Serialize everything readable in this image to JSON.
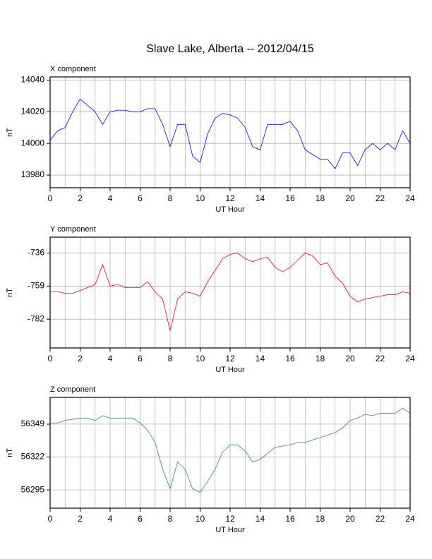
{
  "title": "Slave Lake, Alberta -- 2012/04/15",
  "chart_data": [
    {
      "type": "line",
      "title": "X component",
      "xlabel": "UT Hour",
      "ylabel": "nT",
      "color": "#0000ff",
      "grid": true,
      "xlim": [
        0,
        24
      ],
      "xticks": [
        0,
        2,
        4,
        6,
        8,
        10,
        12,
        14,
        16,
        18,
        20,
        22,
        24
      ],
      "xminorticks": [
        1,
        3,
        5,
        7,
        9,
        11,
        13,
        15,
        17,
        19,
        21,
        23
      ],
      "ylim": [
        13972,
        14042
      ],
      "yticks": [
        13980,
        14000,
        14020,
        14040
      ],
      "x": [
        0,
        0.5,
        1,
        1.5,
        2,
        2.5,
        3,
        3.5,
        4,
        4.5,
        5,
        5.5,
        6,
        6.5,
        7,
        7.5,
        8,
        8.5,
        9,
        9.5,
        10,
        10.5,
        11,
        11.5,
        12,
        12.5,
        13,
        13.5,
        14,
        14.5,
        15,
        15.5,
        16,
        16.5,
        17,
        17.5,
        18,
        18.5,
        19,
        19.5,
        20,
        20.5,
        21,
        21.5,
        22,
        22.5,
        23,
        23.5,
        24
      ],
      "values": [
        14002,
        14008,
        14010,
        14020,
        14028,
        14024,
        14020,
        14012,
        14020,
        14021,
        14021,
        14020,
        14020,
        14022,
        14022,
        14012,
        13998,
        14012,
        14012,
        13992,
        13988,
        14006,
        14016,
        14019,
        14018,
        14016,
        14010,
        13998,
        13996,
        14012,
        14012,
        14012,
        14014,
        14008,
        13996,
        13993,
        13990,
        13990,
        13984,
        13994,
        13994,
        13986,
        13996,
        14000,
        13996,
        14000,
        13996,
        14008,
        14000
      ]
    },
    {
      "type": "line",
      "title": "Y component",
      "xlabel": "UT Hour",
      "ylabel": "nT",
      "color": "#ff0000",
      "grid": true,
      "xlim": [
        0,
        24
      ],
      "xticks": [
        0,
        2,
        4,
        6,
        8,
        10,
        12,
        14,
        16,
        18,
        20,
        22,
        24
      ],
      "xminorticks": [
        1,
        3,
        5,
        7,
        9,
        11,
        13,
        15,
        17,
        19,
        21,
        23
      ],
      "ylim": [
        -802,
        -725
      ],
      "yticks": [
        -782,
        -759,
        -736
      ],
      "x": [
        0,
        0.5,
        1,
        1.5,
        2,
        2.5,
        3,
        3.5,
        4,
        4.5,
        5,
        5.5,
        6,
        6.5,
        7,
        7.5,
        8,
        8.5,
        9,
        9.5,
        10,
        10.5,
        11,
        11.5,
        12,
        12.5,
        13,
        13.5,
        14,
        14.5,
        15,
        15.5,
        16,
        16.5,
        17,
        17.5,
        18,
        18.5,
        19,
        19.5,
        20,
        20.5,
        21,
        21.5,
        22,
        22.5,
        23,
        23.5,
        24
      ],
      "values": [
        -763,
        -763,
        -764,
        -764,
        -762,
        -760,
        -758,
        -744,
        -759,
        -758,
        -760,
        -760,
        -760,
        -756,
        -763,
        -768,
        -790,
        -768,
        -763,
        -764,
        -766,
        -756,
        -748,
        -740,
        -737,
        -736,
        -740,
        -742,
        -740,
        -739,
        -746,
        -749,
        -746,
        -741,
        -736,
        -738,
        -744,
        -743,
        -752,
        -757,
        -766,
        -770,
        -768,
        -767,
        -766,
        -765,
        -765,
        -763,
        -764
      ]
    },
    {
      "type": "line",
      "title": "Z component",
      "xlabel": "UT Hour",
      "ylabel": "nT",
      "color": "#2e8b57",
      "grid": true,
      "xlim": [
        0,
        24
      ],
      "xticks": [
        0,
        2,
        4,
        6,
        8,
        10,
        12,
        14,
        16,
        18,
        20,
        22,
        24
      ],
      "xminorticks": [
        1,
        3,
        5,
        7,
        9,
        11,
        13,
        15,
        17,
        19,
        21,
        23
      ],
      "ylim": [
        56280,
        56371
      ],
      "yticks": [
        56295,
        56322,
        56349
      ],
      "x": [
        0,
        0.5,
        1,
        1.5,
        2,
        2.5,
        3,
        3.5,
        4,
        4.5,
        5,
        5.5,
        6,
        6.5,
        7,
        7.5,
        8,
        8.5,
        9,
        9.5,
        10,
        10.5,
        11,
        11.5,
        12,
        12.5,
        13,
        13.5,
        14,
        14.5,
        15,
        15.5,
        16,
        16.5,
        17,
        17.5,
        18,
        18.5,
        19,
        19.5,
        20,
        20.5,
        21,
        21.5,
        22,
        22.5,
        23,
        23.5,
        24
      ],
      "values": [
        56350,
        56350,
        56352,
        56353,
        56354,
        56354,
        56352,
        56356,
        56354,
        56354,
        56354,
        56354,
        56350,
        56344,
        56334,
        56312,
        56296,
        56318,
        56312,
        56296,
        56293,
        56302,
        56312,
        56326,
        56332,
        56332,
        56327,
        56318,
        56320,
        56325,
        56330,
        56331,
        56332,
        56334,
        56334,
        56336,
        56338,
        56340,
        56342,
        56346,
        56352,
        56354,
        56357,
        56356,
        56358,
        56358,
        56358,
        56362,
        56358
      ]
    }
  ]
}
